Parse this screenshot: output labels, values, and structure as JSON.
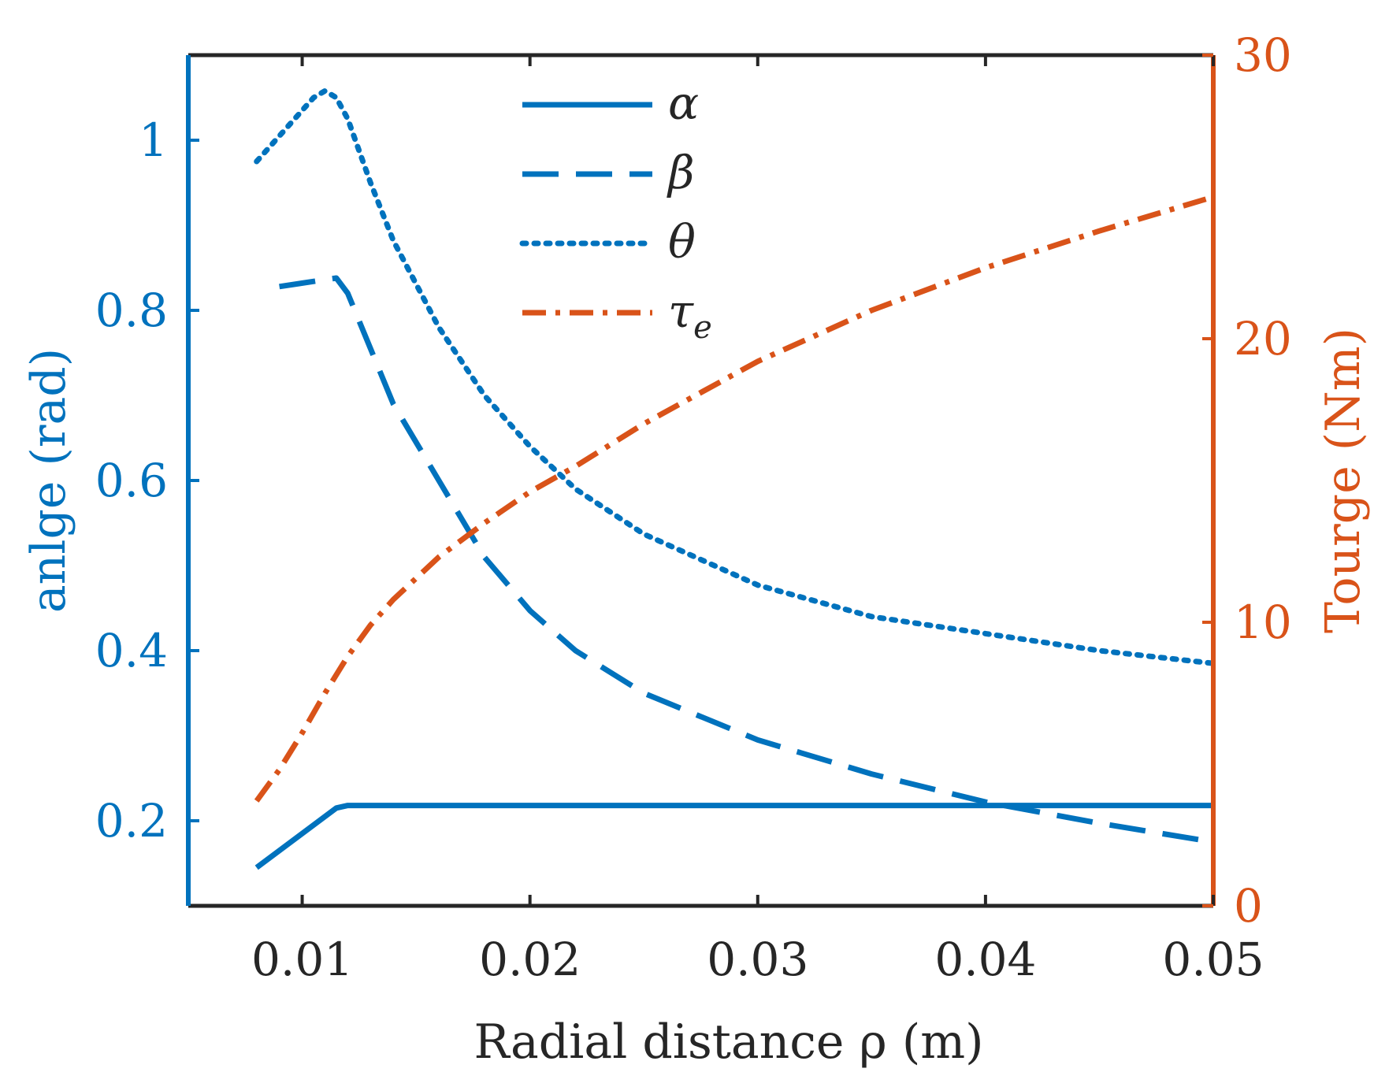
{
  "chart_data": {
    "type": "line",
    "dual_axis": true,
    "xlabel": "Radial distance ρ (m)",
    "ylabel_left": "anlge (rad)",
    "ylabel_right": "Tourge (Nm)",
    "xlim": [
      0.005,
      0.05
    ],
    "ylim_left": [
      0.1,
      1.1
    ],
    "ylim_right": [
      0,
      30
    ],
    "x_ticks": [
      0.01,
      0.02,
      0.03,
      0.04,
      0.05
    ],
    "x_tick_labels": [
      "0.01",
      "0.02",
      "0.03",
      "0.04",
      "0.05"
    ],
    "y_left_ticks": [
      0.2,
      0.4,
      0.6,
      0.8,
      1.0
    ],
    "y_left_tick_labels": [
      "0.2",
      "0.4",
      "0.6",
      "0.8",
      "1"
    ],
    "y_right_ticks": [
      0,
      10,
      20,
      30
    ],
    "y_right_tick_labels": [
      "0",
      "10",
      "20",
      "30"
    ],
    "grid": false,
    "legend_position": "top-center",
    "colors": {
      "left_axis": "#0072BD",
      "right_axis": "#D95319",
      "frame": "#262626",
      "text": "#262626"
    },
    "series": [
      {
        "name": "α",
        "sub": "",
        "axis": "left",
        "style": "solid",
        "color": "#0072BD",
        "x": [
          0.008,
          0.0115,
          0.012,
          0.05
        ],
        "values": [
          0.145,
          0.215,
          0.218,
          0.218
        ]
      },
      {
        "name": "β",
        "sub": "",
        "axis": "left",
        "style": "dashed",
        "color": "#0072BD",
        "x": [
          0.009,
          0.011,
          0.0115,
          0.012,
          0.013,
          0.014,
          0.016,
          0.018,
          0.02,
          0.022,
          0.025,
          0.03,
          0.035,
          0.04,
          0.045,
          0.05
        ],
        "values": [
          0.828,
          0.836,
          0.838,
          0.82,
          0.755,
          0.69,
          0.6,
          0.51,
          0.447,
          0.4,
          0.35,
          0.295,
          0.255,
          0.222,
          0.197,
          0.175
        ]
      },
      {
        "name": "θ",
        "sub": "",
        "axis": "left",
        "style": "dotted",
        "color": "#0072BD",
        "x": [
          0.008,
          0.0105,
          0.011,
          0.0115,
          0.012,
          0.013,
          0.014,
          0.016,
          0.018,
          0.02,
          0.022,
          0.025,
          0.03,
          0.035,
          0.04,
          0.045,
          0.05
        ],
        "values": [
          0.975,
          1.05,
          1.058,
          1.05,
          1.025,
          0.95,
          0.882,
          0.78,
          0.7,
          0.64,
          0.59,
          0.537,
          0.477,
          0.44,
          0.42,
          0.4,
          0.385
        ]
      },
      {
        "name": "τ",
        "sub": "e",
        "axis": "right",
        "style": "dashdot",
        "color": "#D95319",
        "x": [
          0.008,
          0.009,
          0.01,
          0.011,
          0.012,
          0.013,
          0.014,
          0.016,
          0.018,
          0.02,
          0.022,
          0.025,
          0.03,
          0.035,
          0.04,
          0.045,
          0.05
        ],
        "values": [
          3.7,
          4.8,
          6.1,
          7.5,
          8.8,
          9.9,
          10.8,
          12.3,
          13.5,
          14.6,
          15.5,
          17.0,
          19.2,
          21.0,
          22.5,
          23.8,
          25.0
        ]
      }
    ]
  }
}
